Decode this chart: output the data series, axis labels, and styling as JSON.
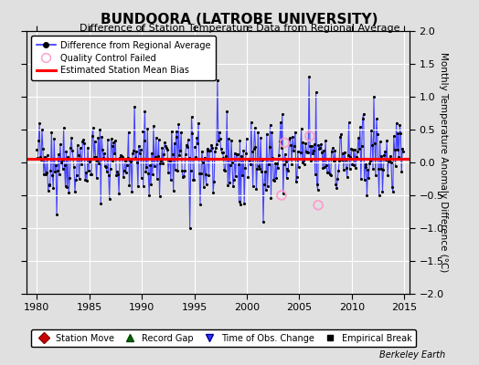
{
  "title": "BUNDOORA (LATROBE UNIVERSITY)",
  "subtitle": "Difference of Station Temperature Data from Regional Average",
  "ylabel": "Monthly Temperature Anomaly Difference (°C)",
  "xlim": [
    1979.0,
    2015.5
  ],
  "ylim": [
    -2.0,
    2.0
  ],
  "bias_level": 0.05,
  "xticks": [
    1980,
    1985,
    1990,
    1995,
    2000,
    2005,
    2010,
    2015
  ],
  "yticks": [
    -2,
    -1.5,
    -1,
    -0.5,
    0,
    0.5,
    1,
    1.5,
    2
  ],
  "line_color": "#3333FF",
  "dot_color": "#000000",
  "bias_color": "#FF0000",
  "qc_color": "#FF99CC",
  "background_color": "#E0E0E0",
  "grid_color": "#FFFFFF",
  "watermark": "Berkeley Earth",
  "seed": 42,
  "title_fontsize": 11,
  "subtitle_fontsize": 8,
  "tick_fontsize": 8,
  "ylabel_fontsize": 7.5
}
